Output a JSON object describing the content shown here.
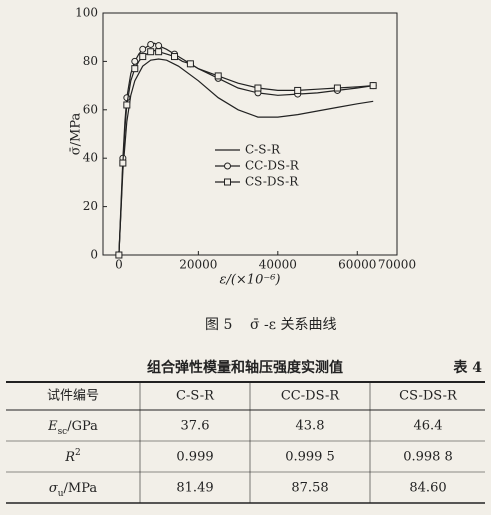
{
  "chart_data": {
    "type": "line",
    "ylabel": "σ̄/MPa",
    "xlabel": "ε/(×10⁻⁶)",
    "xlim": [
      -4000,
      70000
    ],
    "xticks": [
      0,
      20000,
      40000,
      60000,
      70000
    ],
    "ylim": [
      0,
      100
    ],
    "yticks": [
      0,
      20,
      40,
      60,
      80,
      100
    ],
    "series": [
      {
        "name": "C-S-R",
        "color": "#222222",
        "marker": "none",
        "x": [
          0,
          1000,
          2000,
          3000,
          4000,
          6000,
          8000,
          10000,
          12000,
          15000,
          20000,
          25000,
          30000,
          35000,
          40000,
          45000,
          50000,
          55000,
          60000,
          64000
        ],
        "values": [
          0,
          35,
          55,
          66,
          72,
          78,
          80.5,
          81,
          80.5,
          78,
          72,
          65,
          60,
          57,
          57,
          58,
          59.5,
          61,
          62.5,
          63.5
        ]
      },
      {
        "name": "CC-DS-R",
        "color": "#222222",
        "marker": "circle",
        "x": [
          0,
          500,
          1000,
          1500,
          2000,
          3000,
          4000,
          5000,
          6000,
          7000,
          8000,
          9000,
          10000,
          12000,
          14000,
          16000,
          18000,
          20000,
          25000,
          30000,
          35000,
          40000,
          45000,
          50000,
          55000,
          60000,
          64000
        ],
        "values": [
          0,
          20,
          40,
          55,
          65,
          75,
          80,
          83,
          85,
          86,
          87,
          87.5,
          86.5,
          85,
          83,
          81,
          79,
          77,
          73,
          69,
          67,
          66,
          66.5,
          67,
          68,
          69,
          70
        ]
      },
      {
        "name": "CS-DS-R",
        "color": "#222222",
        "marker": "square",
        "x": [
          0,
          500,
          1000,
          1500,
          2000,
          3000,
          4000,
          5000,
          6000,
          7000,
          8000,
          9000,
          10000,
          12000,
          14000,
          16000,
          18000,
          20000,
          25000,
          30000,
          35000,
          40000,
          45000,
          50000,
          55000,
          60000,
          64000
        ],
        "values": [
          0,
          18,
          38,
          52,
          62,
          72,
          77,
          80,
          82,
          83,
          84,
          84.5,
          84,
          83,
          82,
          80,
          79,
          77,
          74,
          71,
          69,
          68,
          68,
          68.5,
          69,
          69.5,
          70
        ]
      }
    ]
  },
  "caption": {
    "number": "图 5",
    "text": "σ̄ -ε 关系曲线"
  },
  "table": {
    "title": "组合弹性模量和轴压强度实测值",
    "number": "表 4",
    "header": [
      "试件编号",
      "C-S-R",
      "CC-DS-R",
      "CS-DS-R"
    ],
    "rows": [
      {
        "label": [
          "E",
          "sc",
          "/GPa"
        ],
        "cells": [
          "37.6",
          "43.8",
          "46.4"
        ]
      },
      {
        "label": [
          "R",
          "2"
        ],
        "cells": [
          "0.999",
          "0.999 5",
          "0.998 8"
        ]
      },
      {
        "label": [
          "σ",
          "u",
          "/MPa"
        ],
        "cells": [
          "81.49",
          "87.58",
          "84.60"
        ]
      }
    ]
  }
}
